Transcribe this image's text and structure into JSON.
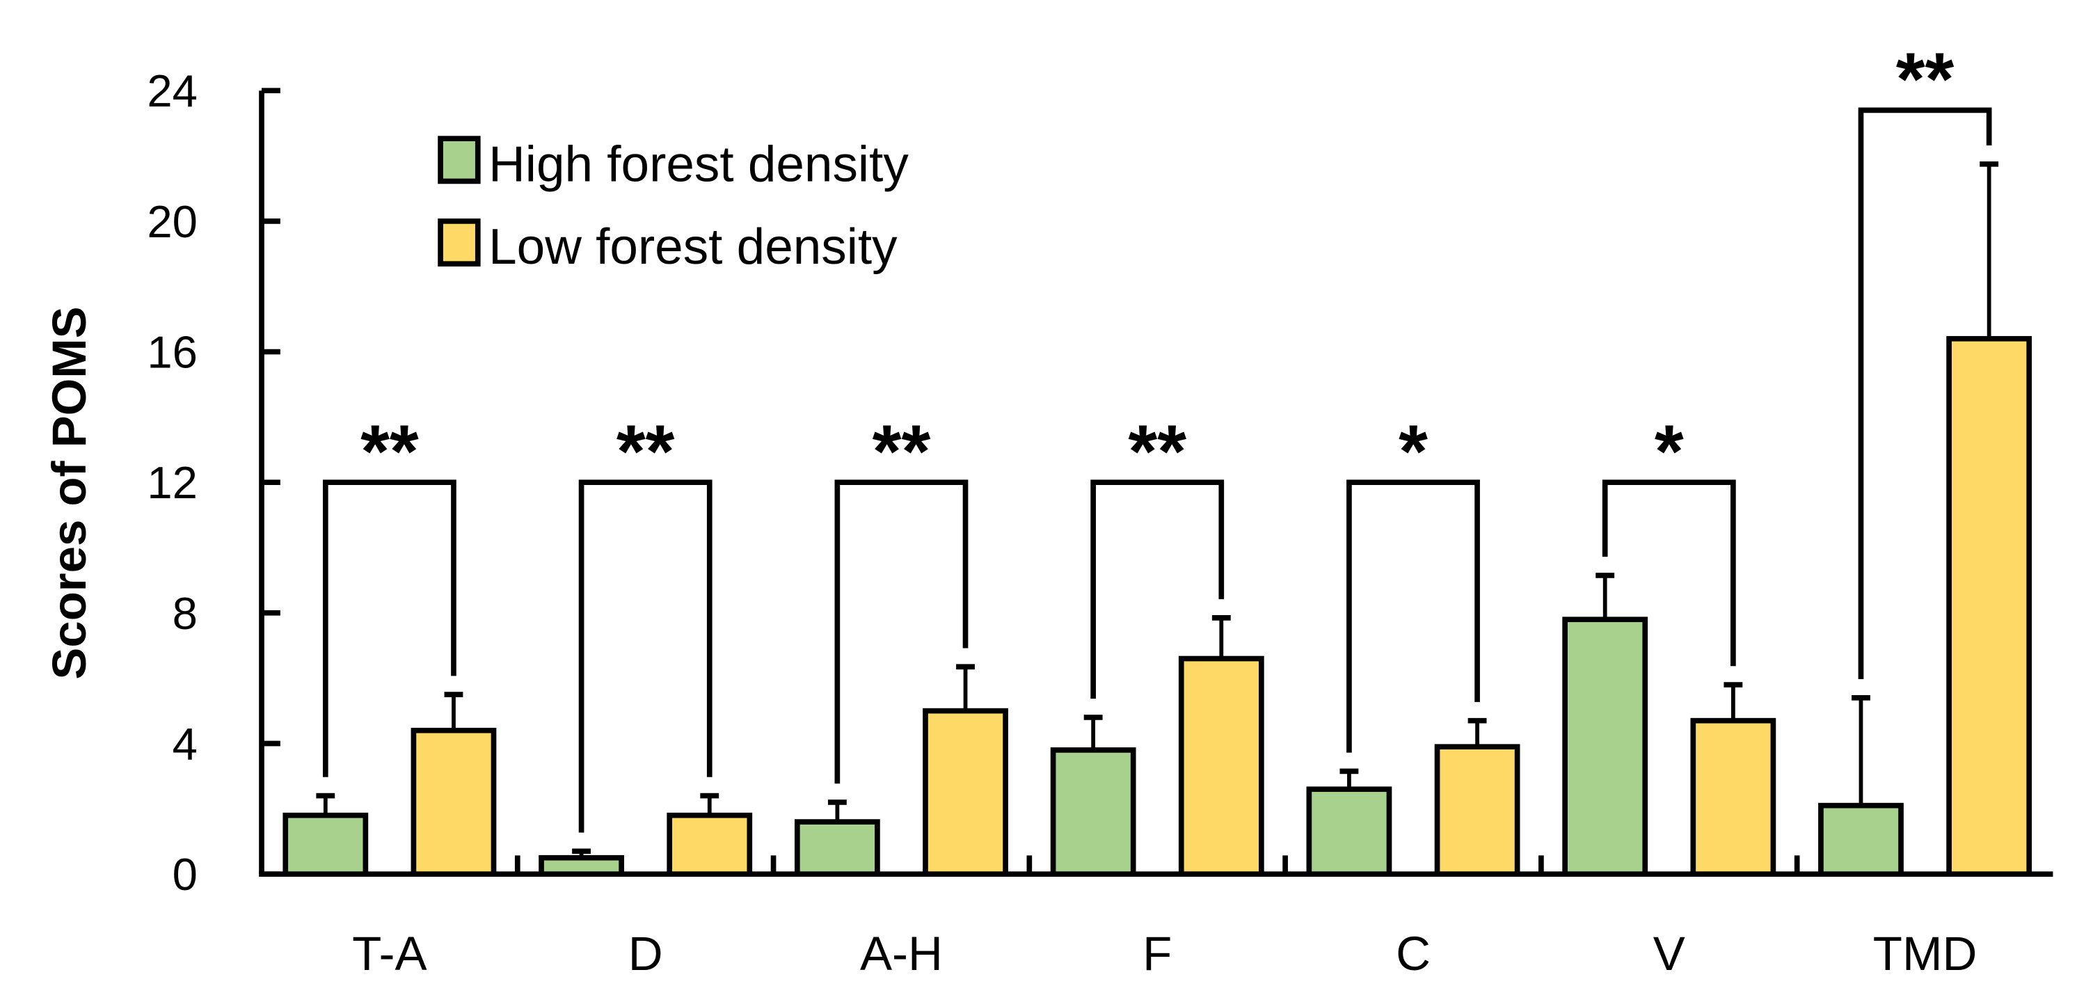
{
  "chart_data": {
    "type": "bar",
    "title": "",
    "xlabel": "",
    "ylabel": "Scores of POMS",
    "ylim": [
      0,
      24
    ],
    "yticks": [
      0,
      4,
      8,
      12,
      16,
      20,
      24
    ],
    "grid": false,
    "legend_position": "upper-left inside",
    "categories": [
      "T-A",
      "D",
      "A-H",
      "F",
      "C",
      "V",
      "TMD"
    ],
    "series": [
      {
        "name": "High forest density",
        "color": "#a9d18e",
        "values": [
          1.8,
          0.5,
          1.6,
          3.8,
          2.6,
          7.8,
          2.1
        ],
        "error": [
          0.6,
          0.2,
          0.6,
          1.0,
          0.55,
          1.35,
          3.3
        ]
      },
      {
        "name": "Low forest density",
        "color": "#ffd966",
        "values": [
          4.4,
          1.8,
          5.0,
          6.6,
          3.9,
          4.7,
          16.4
        ],
        "error": [
          1.1,
          0.6,
          1.35,
          1.25,
          0.8,
          1.1,
          5.35
        ]
      }
    ],
    "significance": [
      "**",
      "**",
      "**",
      "**",
      "*",
      "*",
      "**"
    ],
    "bracket_heights": [
      12,
      12,
      12,
      12,
      12,
      12,
      23.4
    ]
  },
  "ui": {
    "ylabel": "Scores of POMS",
    "legend": [
      "High forest density",
      "Low forest density"
    ]
  }
}
